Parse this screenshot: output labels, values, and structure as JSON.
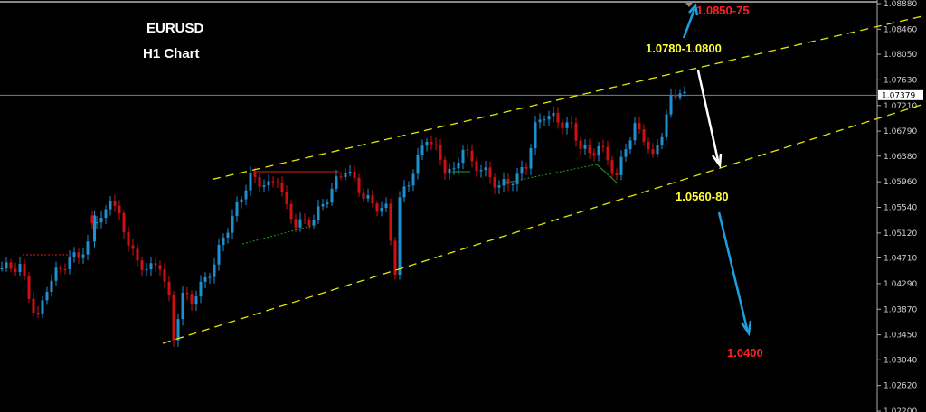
{
  "header": {
    "symbol": "EURUSD",
    "timeframe": "H1 Chart"
  },
  "chart_data": {
    "type": "candlestick",
    "symbol": "EURUSD",
    "timeframe": "H1",
    "ylim": [
      1.022,
      1.0888
    ],
    "y_ticks": [
      "1.08880",
      "1.08460",
      "1.08050",
      "1.07630",
      "1.07210",
      "1.06790",
      "1.06380",
      "1.05960",
      "1.05540",
      "1.05120",
      "1.04710",
      "1.04290",
      "1.03870",
      "1.03450",
      "1.03040",
      "1.02620",
      "1.02200"
    ],
    "current_price": "1.07379",
    "price_path": [
      [
        0,
        1.0454
      ],
      [
        4,
        1.0457
      ],
      [
        7,
        1.0387
      ],
      [
        8,
        1.0372
      ],
      [
        10,
        1.0424
      ],
      [
        12,
        1.0446
      ],
      [
        15,
        1.0469
      ],
      [
        17,
        1.0476
      ],
      [
        19,
        1.0491
      ],
      [
        20,
        1.064
      ],
      [
        20,
        1.0536
      ],
      [
        22,
        1.0528
      ],
      [
        24,
        1.0573
      ],
      [
        26,
        1.0536
      ],
      [
        28,
        1.0499
      ],
      [
        30,
        1.0461
      ],
      [
        33,
        1.0454
      ],
      [
        35,
        1.0461
      ],
      [
        37,
        1.0402
      ],
      [
        38,
        1.0339
      ],
      [
        39,
        1.0379
      ],
      [
        40,
        1.0409
      ],
      [
        42,
        1.0402
      ],
      [
        44,
        1.0424
      ],
      [
        47,
        1.0461
      ],
      [
        49,
        1.0506
      ],
      [
        51,
        1.0536
      ],
      [
        53,
        1.0573
      ],
      [
        55,
        1.0603
      ],
      [
        57,
        1.0596
      ],
      [
        59,
        1.0588
      ],
      [
        61,
        1.0603
      ],
      [
        63,
        1.0551
      ],
      [
        65,
        1.0528
      ],
      [
        67,
        1.0528
      ],
      [
        69,
        1.0536
      ],
      [
        71,
        1.0558
      ],
      [
        74,
        1.0596
      ],
      [
        76,
        1.0618
      ],
      [
        78,
        1.0596
      ],
      [
        80,
        1.0573
      ],
      [
        82,
        1.0558
      ],
      [
        85,
        1.0551
      ],
      [
        87,
        1.0452
      ],
      [
        88,
        1.0566
      ],
      [
        90,
        1.0596
      ],
      [
        92,
        1.0633
      ],
      [
        94,
        1.067
      ],
      [
        96,
        1.0648
      ],
      [
        98,
        1.0618
      ],
      [
        100,
        1.061
      ],
      [
        102,
        1.0655
      ],
      [
        104,
        1.0625
      ],
      [
        106,
        1.0618
      ],
      [
        108,
        1.0603
      ],
      [
        110,
        1.0588
      ],
      [
        112,
        1.0596
      ],
      [
        114,
        1.0603
      ],
      [
        116,
        1.0625
      ],
      [
        118,
        1.0685
      ],
      [
        120,
        1.0707
      ],
      [
        122,
        1.07
      ],
      [
        124,
        1.0692
      ],
      [
        126,
        1.0685
      ],
      [
        128,
        1.0655
      ],
      [
        130,
        1.064
      ],
      [
        132,
        1.0655
      ],
      [
        134,
        1.0633
      ],
      [
        136,
        1.0603
      ],
      [
        138,
        1.0655
      ],
      [
        140,
        1.0685
      ],
      [
        142,
        1.067
      ],
      [
        144,
        1.0633
      ],
      [
        146,
        1.0678
      ],
      [
        148,
        1.073
      ],
      [
        150,
        1.0748
      ],
      [
        151,
        1.0737
      ],
      [
        152,
        1.0739
      ]
    ],
    "trend_channel": {
      "upper": [
        [
          47,
          1.06
        ],
        [
          205,
          1.0869
        ]
      ],
      "lower": [
        [
          36,
          1.0331
        ],
        [
          205,
          1.0725
        ]
      ],
      "color": "#e6e600"
    },
    "annotations": [
      {
        "text": "1.0850-75",
        "color": "#ff2020"
      },
      {
        "text": "1.0780-1.0800",
        "color": "#ffff33"
      },
      {
        "text": "1.0560-80",
        "color": "#ffff33"
      },
      {
        "text": "1.0400",
        "color": "#ff2020"
      }
    ],
    "colors": {
      "bull": "#1e90d0",
      "bear": "#d01010",
      "arrow_up": "#1ea0e0",
      "arrow_down_white": "#ffffff",
      "arrow_down_blue": "#1ea0e0"
    }
  }
}
